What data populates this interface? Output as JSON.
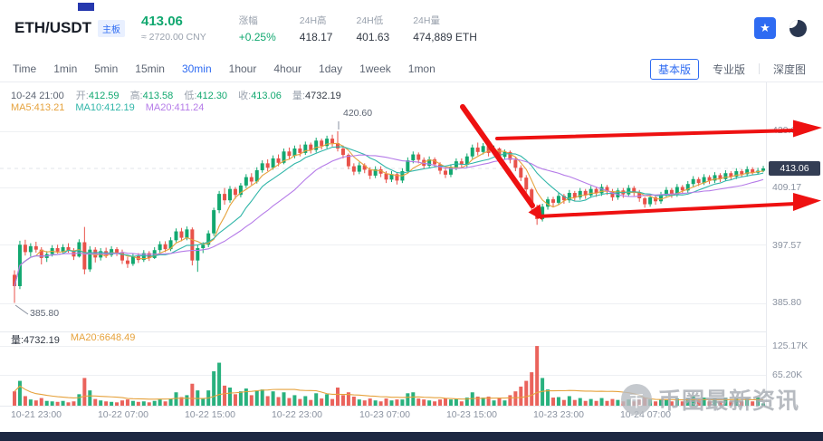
{
  "header": {
    "pair": "ETH/USDT",
    "board_badge": "主板",
    "price": "413.06",
    "price_cny": "≈ 2720.00 CNY",
    "stats": [
      {
        "label": "涨幅",
        "value": "+0.25%",
        "up": true
      },
      {
        "label": "24H高",
        "value": "418.17"
      },
      {
        "label": "24H低",
        "value": "401.63"
      },
      {
        "label": "24H量",
        "value": "474,889 ETH"
      }
    ]
  },
  "icons": {
    "star": "★"
  },
  "toolbar": {
    "tabs": [
      {
        "label": "Time"
      },
      {
        "label": "1min"
      },
      {
        "label": "5min"
      },
      {
        "label": "15min"
      },
      {
        "label": "30min",
        "active": true
      },
      {
        "label": "1hour"
      },
      {
        "label": "4hour"
      },
      {
        "label": "1day"
      },
      {
        "label": "1week"
      },
      {
        "label": "1mon"
      }
    ],
    "modes": [
      {
        "label": "基本版",
        "active": true
      },
      {
        "label": "专业版"
      },
      {
        "label": "深度图"
      }
    ]
  },
  "chart": {
    "ohlc": {
      "time": "10-24 21:00",
      "fields": [
        {
          "label": "开:",
          "value": "412.59",
          "color": "up"
        },
        {
          "label": "高:",
          "value": "413.58",
          "color": "up"
        },
        {
          "label": "低:",
          "value": "412.30",
          "color": "up"
        },
        {
          "label": "收:",
          "value": "413.06",
          "color": "up"
        },
        {
          "label": "量:",
          "value": "4732.19",
          "color": "neutral"
        }
      ]
    },
    "ma_info": [
      "MA5:413.21",
      "MA10:412.19",
      "MA20:411.24"
    ],
    "volume_info": [
      "量:4732.19",
      "MA20:6648.49"
    ],
    "price_axis": [
      "420.68",
      "409.17",
      "397.57",
      "385.80"
    ],
    "current_price": "413.06",
    "volume_axis": [
      "125.17K",
      "65.20K"
    ],
    "time_axis": [
      "10-21 23:00",
      "10-22 07:00",
      "10-22 15:00",
      "10-22 23:00",
      "10-23 07:00",
      "10-23 15:00",
      "10-23 23:00",
      "10-24 07:00"
    ],
    "high_marker": "420.60",
    "low_marker": "385.80"
  },
  "watermark": {
    "logo_char": "币",
    "text": "币圈最新资讯"
  },
  "colors": {
    "up": "#12a870",
    "down": "#e8524a",
    "accent": "#2e6bf2",
    "ma5": "#e6a23c",
    "ma10": "#31b6a9",
    "ma20": "#b57be8",
    "annotation": "#ee1111",
    "badge_bg": "#333d54"
  },
  "chart_data": {
    "type": "candlestick",
    "pair": "ETH/USDT",
    "interval": "30min",
    "y_axis_ticks": [
      420.68,
      409.17,
      397.57,
      385.8
    ],
    "volume_axis_ticks_k": [
      125.17,
      65.2
    ],
    "x_tick_labels": [
      "10-21 23:00",
      "10-22 07:00",
      "10-22 15:00",
      "10-22 23:00",
      "10-23 07:00",
      "10-23 15:00",
      "10-23 23:00",
      "10-24 07:00"
    ],
    "last_price": 413.06,
    "change_pct": 0.25,
    "high_24h": 418.17,
    "low_24h": 401.63,
    "volume_24h_eth": "474,889",
    "marked_high": 420.6,
    "marked_low": 385.8,
    "ohlc_current": {
      "open": 412.59,
      "high": 413.58,
      "low": 412.3,
      "close": 413.06,
      "volume": 4732.19
    },
    "ma_current": {
      "ma5": 413.21,
      "ma10": 412.19,
      "ma20": 411.24
    },
    "volume_ma20": 6648.49,
    "columns": [
      "open",
      "high",
      "low",
      "close",
      "volume_k"
    ],
    "candles": [
      [
        391.5,
        392.4,
        385.8,
        389.2,
        30
      ],
      [
        389.2,
        398.4,
        388.6,
        397.6,
        52
      ],
      [
        397.6,
        398.6,
        395.4,
        396.1,
        20
      ],
      [
        396.1,
        397.9,
        395.2,
        397.3,
        13
      ],
      [
        397.3,
        398.2,
        396,
        396.6,
        11
      ],
      [
        396.6,
        397.1,
        393.6,
        394.9,
        16
      ],
      [
        394.9,
        396.3,
        394.1,
        395.7,
        10
      ],
      [
        395.7,
        397.5,
        395.2,
        396.9,
        9
      ],
      [
        396.9,
        397.6,
        395.8,
        396.2,
        8
      ],
      [
        396.2,
        397.7,
        395.9,
        397.1,
        10
      ],
      [
        397.1,
        397.9,
        396,
        396.4,
        7
      ],
      [
        396.4,
        396.9,
        394.5,
        395.2,
        9
      ],
      [
        395.2,
        398.7,
        395,
        398.1,
        24
      ],
      [
        398.1,
        401.2,
        391.6,
        392.6,
        58
      ],
      [
        392.6,
        397.3,
        392.1,
        396.6,
        32
      ],
      [
        396.6,
        397.1,
        394,
        395,
        14
      ],
      [
        395,
        396.9,
        394.4,
        396.3,
        11
      ],
      [
        396.3,
        397,
        394.9,
        395.5,
        9
      ],
      [
        395.5,
        397.3,
        395.1,
        396.7,
        8
      ],
      [
        396.7,
        397.1,
        395.3,
        396,
        7
      ],
      [
        396,
        396.6,
        393.7,
        394.4,
        11
      ],
      [
        394.4,
        395.1,
        392.9,
        393.7,
        13
      ],
      [
        393.7,
        395.9,
        393.3,
        395.3,
        10
      ],
      [
        395.3,
        395.9,
        393.9,
        394.5,
        8
      ],
      [
        394.5,
        396.5,
        394.1,
        395.9,
        9
      ],
      [
        395.9,
        396.3,
        394.3,
        394.9,
        7
      ],
      [
        394.9,
        397.1,
        394.7,
        396.5,
        10
      ],
      [
        396.5,
        398.3,
        396,
        397.7,
        13
      ],
      [
        397.7,
        398.3,
        396.1,
        396.7,
        9
      ],
      [
        396.7,
        399.1,
        396.3,
        398.5,
        15
      ],
      [
        398.5,
        400.9,
        398.1,
        400.3,
        28
      ],
      [
        400.3,
        401,
        398.3,
        399,
        18
      ],
      [
        399,
        401.3,
        398.5,
        400.7,
        22
      ],
      [
        400.7,
        401.1,
        393.4,
        394.4,
        46
      ],
      [
        394.4,
        397.5,
        392.1,
        396.9,
        32
      ],
      [
        396.9,
        398.1,
        395.9,
        397.6,
        15
      ],
      [
        397.6,
        400.5,
        397.1,
        399.9,
        32
      ],
      [
        399.9,
        405.1,
        399.4,
        404.6,
        72
      ],
      [
        404.6,
        408.5,
        404,
        407.9,
        90
      ],
      [
        407.9,
        409.1,
        405.7,
        406.6,
        42
      ],
      [
        406.6,
        409.5,
        406.1,
        408.9,
        38
      ],
      [
        408.9,
        409.3,
        406.9,
        407.7,
        24
      ],
      [
        407.7,
        410.1,
        407.2,
        409.6,
        30
      ],
      [
        409.6,
        411.9,
        409.1,
        411.3,
        36
      ],
      [
        411.3,
        412.1,
        409.7,
        410.4,
        22
      ],
      [
        410.4,
        413.3,
        410,
        412.7,
        32
      ],
      [
        412.7,
        414.7,
        412.2,
        414.1,
        34
      ],
      [
        414.1,
        414.9,
        412.5,
        413.2,
        20
      ],
      [
        413.2,
        415.7,
        412.8,
        415.1,
        30
      ],
      [
        415.1,
        415.9,
        413.5,
        414.2,
        18
      ],
      [
        414.2,
        417.1,
        413.9,
        416.5,
        28
      ],
      [
        416.5,
        417.3,
        414.9,
        415.6,
        16
      ],
      [
        415.6,
        417.7,
        415.1,
        417.1,
        22
      ],
      [
        417.1,
        417.9,
        415.5,
        416.2,
        14
      ],
      [
        416.2,
        418.5,
        415.8,
        417.9,
        20
      ],
      [
        417.9,
        418.3,
        416.1,
        416.8,
        12
      ],
      [
        416.8,
        419.3,
        416.3,
        418.7,
        26
      ],
      [
        418.7,
        419.1,
        416.9,
        417.6,
        15
      ],
      [
        417.6,
        419.7,
        417.1,
        419.1,
        24
      ],
      [
        419.1,
        419.9,
        417.5,
        418.2,
        14
      ],
      [
        418.2,
        420.6,
        416.5,
        417.1,
        38
      ],
      [
        417.1,
        417.7,
        415.1,
        415.8,
        22
      ],
      [
        415.8,
        416.1,
        412.9,
        413.5,
        28
      ],
      [
        413.5,
        414.1,
        411.7,
        412.4,
        19
      ],
      [
        412.4,
        414.3,
        411.9,
        413.7,
        13
      ],
      [
        413.7,
        414.1,
        412.1,
        412.8,
        11
      ],
      [
        412.8,
        413.3,
        410.9,
        411.6,
        15
      ],
      [
        411.6,
        413.5,
        411.1,
        412.9,
        11
      ],
      [
        412.9,
        413.5,
        411.3,
        412,
        9
      ],
      [
        412,
        412.5,
        410.1,
        410.8,
        15
      ],
      [
        410.8,
        412.5,
        410.3,
        411.9,
        11
      ],
      [
        411.9,
        412.3,
        409.8,
        410.6,
        13
      ],
      [
        410.6,
        413.1,
        410.1,
        412.5,
        13
      ],
      [
        412.5,
        415.3,
        412,
        414.7,
        26
      ],
      [
        414.7,
        416.5,
        414.1,
        415.9,
        28
      ],
      [
        415.9,
        416.3,
        414.1,
        414.8,
        15
      ],
      [
        414.8,
        415.3,
        412.9,
        413.6,
        13
      ],
      [
        413.6,
        415.5,
        413.1,
        414.9,
        11
      ],
      [
        414.9,
        415.3,
        413.3,
        413.9,
        9
      ],
      [
        413.9,
        414.3,
        411.9,
        412.6,
        13
      ],
      [
        412.6,
        413.1,
        411.1,
        411.8,
        15
      ],
      [
        411.8,
        413.9,
        411.3,
        413.3,
        13
      ],
      [
        413.3,
        415.1,
        412.7,
        414.5,
        15
      ],
      [
        414.5,
        415.1,
        413.1,
        413.8,
        9
      ],
      [
        413.8,
        416.1,
        413.3,
        415.5,
        17
      ],
      [
        415.5,
        417.9,
        415,
        417.3,
        28
      ],
      [
        417.3,
        418.3,
        415.7,
        416.4,
        19
      ],
      [
        416.4,
        418.2,
        415.9,
        417.6,
        17
      ],
      [
        417.6,
        418.17,
        415.5,
        416.2,
        19
      ],
      [
        416.2,
        417.7,
        415.7,
        417.1,
        11
      ],
      [
        417.1,
        417.3,
        414.7,
        415.4,
        17
      ],
      [
        415.4,
        416.9,
        414.8,
        416.4,
        11
      ],
      [
        416.4,
        416.7,
        414.1,
        414.8,
        22
      ],
      [
        414.8,
        415.3,
        412.5,
        413.2,
        30
      ],
      [
        413.2,
        413.7,
        410.5,
        411.2,
        40
      ],
      [
        411.2,
        411.7,
        407.9,
        408.8,
        52
      ],
      [
        408.8,
        409.1,
        404.5,
        405.2,
        70
      ],
      [
        405.2,
        405.7,
        401.63,
        402.8,
        125
      ],
      [
        402.8,
        405.9,
        402.3,
        405.3,
        58
      ],
      [
        405.3,
        407.3,
        404.7,
        406.8,
        34
      ],
      [
        406.8,
        407.3,
        405.3,
        406.1,
        17
      ],
      [
        406.1,
        408.1,
        405.7,
        407.5,
        18
      ],
      [
        407.5,
        407.9,
        405.9,
        406.6,
        12
      ],
      [
        406.6,
        408.7,
        406.1,
        408.1,
        20
      ],
      [
        408.1,
        408.5,
        406.5,
        407.2,
        12
      ],
      [
        407.2,
        409.1,
        406.7,
        408.5,
        16
      ],
      [
        408.5,
        408.9,
        406.9,
        407.6,
        10
      ],
      [
        407.6,
        409.5,
        407.1,
        408.9,
        14
      ],
      [
        408.9,
        409.3,
        407.3,
        408,
        10
      ],
      [
        408,
        409.9,
        407.5,
        409.3,
        16
      ],
      [
        409.3,
        409.7,
        407.7,
        408.4,
        10
      ],
      [
        408.4,
        408.9,
        406.5,
        407.2,
        14
      ],
      [
        407.2,
        409.1,
        406.7,
        408.6,
        12
      ],
      [
        408.6,
        409.1,
        407.1,
        407.8,
        9
      ],
      [
        407.8,
        409.7,
        407.3,
        409.1,
        13
      ],
      [
        409.1,
        409.5,
        407.5,
        408.2,
        9
      ],
      [
        408.2,
        408.7,
        406.3,
        407,
        13
      ],
      [
        407,
        407.3,
        405.1,
        405.8,
        17
      ],
      [
        405.8,
        407.7,
        405.3,
        407.2,
        13
      ],
      [
        407.2,
        407.7,
        405.7,
        406.4,
        9
      ],
      [
        406.4,
        408.3,
        405.9,
        407.8,
        13
      ],
      [
        407.8,
        409.3,
        407.3,
        408.7,
        13
      ],
      [
        408.7,
        409.1,
        407.1,
        407.8,
        9
      ],
      [
        407.8,
        409.9,
        407.3,
        409.3,
        15
      ],
      [
        409.3,
        409.7,
        407.9,
        408.6,
        9
      ],
      [
        408.6,
        410.5,
        408.1,
        409.9,
        15
      ],
      [
        409.9,
        411.5,
        409.4,
        410.9,
        19
      ],
      [
        410.9,
        411.3,
        409.5,
        410.1,
        11
      ],
      [
        410.1,
        411.9,
        409.7,
        411.3,
        17
      ],
      [
        411.3,
        411.7,
        409.9,
        410.6,
        9
      ],
      [
        410.6,
        412.3,
        410.1,
        411.7,
        15
      ],
      [
        411.7,
        412.1,
        410.3,
        410.9,
        9
      ],
      [
        410.9,
        412.7,
        410.5,
        412.1,
        17
      ],
      [
        412.1,
        412.5,
        410.8,
        411.4,
        9
      ],
      [
        411.4,
        413.1,
        410.9,
        412.5,
        15
      ],
      [
        412.5,
        412.9,
        411.3,
        411.9,
        9
      ],
      [
        411.9,
        413.5,
        411.4,
        412.9,
        15
      ],
      [
        412.9,
        413.3,
        411.7,
        412.2,
        9
      ],
      [
        412.2,
        413.2,
        411.8,
        412.59,
        17
      ],
      [
        412.59,
        413.58,
        412.3,
        413.06,
        4.7
      ]
    ]
  }
}
